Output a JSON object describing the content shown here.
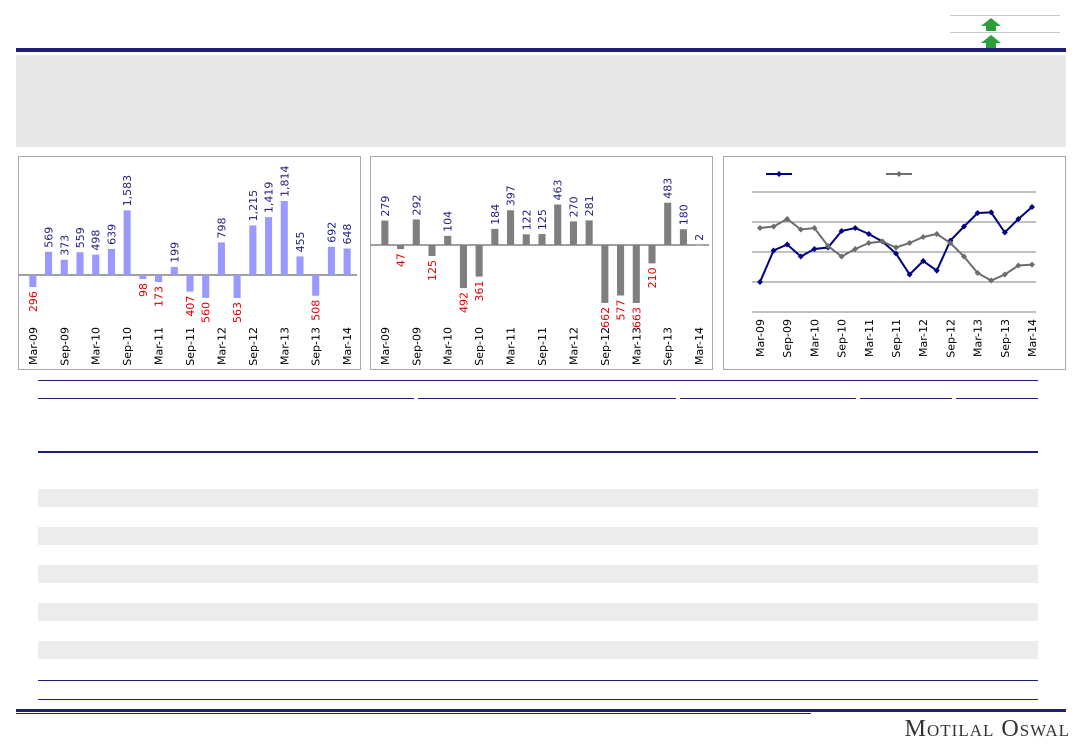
{
  "brand": {
    "name": "Motilal Oswal"
  },
  "colors": {
    "navy": "#1f1f7a",
    "bar_positive_blue": "#9999ff",
    "bar_gray": "#7f7f7f",
    "negative_label": "#e00000",
    "positive_label": "#1f1f7a",
    "line_navy": "#000080",
    "line_gray": "#6d6d6d",
    "arrow_green": "#2e9e3a"
  },
  "icons": [
    "up-arrow-icon",
    "up-arrow-icon"
  ],
  "chart_data": [
    {
      "type": "bar",
      "categories": [
        "Mar-09",
        "Jun-09",
        "Sep-09",
        "Dec-09",
        "Mar-10",
        "Jun-10",
        "Sep-10",
        "Dec-10",
        "Mar-11",
        "Jun-11",
        "Sep-11",
        "Dec-11",
        "Mar-12",
        "Jun-12",
        "Sep-12",
        "Dec-12",
        "Mar-13",
        "Jun-13",
        "Sep-13",
        "Dec-13",
        "Mar-14"
      ],
      "tick_labels": [
        "Mar-09",
        "Sep-09",
        "Mar-10",
        "Sep-10",
        "Mar-11",
        "Sep-11",
        "Mar-12",
        "Sep-12",
        "Mar-13",
        "Sep-13",
        "Mar-14"
      ],
      "values": [
        -296,
        569,
        373,
        559,
        498,
        639,
        1583,
        -98,
        -173,
        199,
        -407,
        -560,
        798,
        -563,
        1215,
        1419,
        1814,
        455,
        -508,
        692,
        648
      ],
      "labels": [
        "296",
        "569",
        "373",
        "559",
        "498",
        "639",
        "1,583",
        "98",
        "173",
        "199",
        "407",
        "560",
        "798",
        "563",
        "1,215",
        "1,419",
        "1,814",
        "455",
        "508",
        "692",
        "648"
      ],
      "ylim": [
        -700,
        1900
      ]
    },
    {
      "type": "bar",
      "categories": [
        "Mar-09",
        "Jun-09",
        "Sep-09",
        "Dec-09",
        "Mar-10",
        "Jun-10",
        "Sep-10",
        "Dec-10",
        "Mar-11",
        "Jun-11",
        "Sep-11",
        "Dec-11",
        "Mar-12",
        "Jun-12",
        "Sep-12",
        "Dec-12",
        "Mar-13",
        "Jun-13",
        "Sep-13",
        "Dec-13",
        "Mar-14"
      ],
      "tick_labels": [
        "Mar-09",
        "Sep-09",
        "Mar-10",
        "Sep-10",
        "Mar-11",
        "Sep-11",
        "Mar-12",
        "Sep-12",
        "Mar-13",
        "Sep-13",
        "Mar-14"
      ],
      "values": [
        279,
        -47,
        292,
        -125,
        104,
        -492,
        -361,
        184,
        397,
        122,
        125,
        463,
        270,
        281,
        -662,
        -577,
        -663,
        -210,
        483,
        180,
        2
      ],
      "labels": [
        "279",
        "47",
        "292",
        "125",
        "104",
        "492",
        "361",
        "184",
        "397",
        "122",
        "125",
        "463",
        "270",
        "281",
        "662",
        "577",
        "663",
        "210",
        "483",
        "180",
        "2"
      ],
      "ylim": [
        -800,
        560
      ]
    },
    {
      "type": "line",
      "x": [
        "Mar-09",
        "Jun-09",
        "Sep-09",
        "Dec-09",
        "Mar-10",
        "Jun-10",
        "Sep-10",
        "Dec-10",
        "Mar-11",
        "Jun-11",
        "Sep-11",
        "Dec-11",
        "Mar-12",
        "Jun-12",
        "Sep-12",
        "Dec-12",
        "Mar-13",
        "Jun-13",
        "Sep-13",
        "Dec-13",
        "Mar-14"
      ],
      "tick_labels": [
        "Mar-09",
        "Sep-09",
        "Mar-10",
        "Sep-10",
        "Mar-11",
        "Sep-11",
        "Mar-12",
        "Sep-12",
        "Mar-13",
        "Sep-13",
        "Mar-14"
      ],
      "series": [
        {
          "values": [
            0.0,
            1.05,
            1.25,
            0.85,
            1.1,
            1.15,
            1.7,
            1.8,
            1.6,
            1.35,
            0.95,
            0.25,
            0.7,
            0.38,
            1.38,
            1.85,
            2.3,
            2.32,
            1.65,
            2.1,
            2.5
          ]
        },
        {
          "values": [
            1.8,
            1.85,
            2.1,
            1.75,
            1.8,
            1.2,
            0.85,
            1.1,
            1.3,
            1.35,
            1.15,
            1.3,
            1.5,
            1.6,
            1.3,
            0.85,
            0.3,
            0.05,
            0.25,
            0.55,
            0.58
          ]
        }
      ],
      "ylim": [
        -1,
        3
      ],
      "grid": true,
      "legend": "top"
    }
  ]
}
